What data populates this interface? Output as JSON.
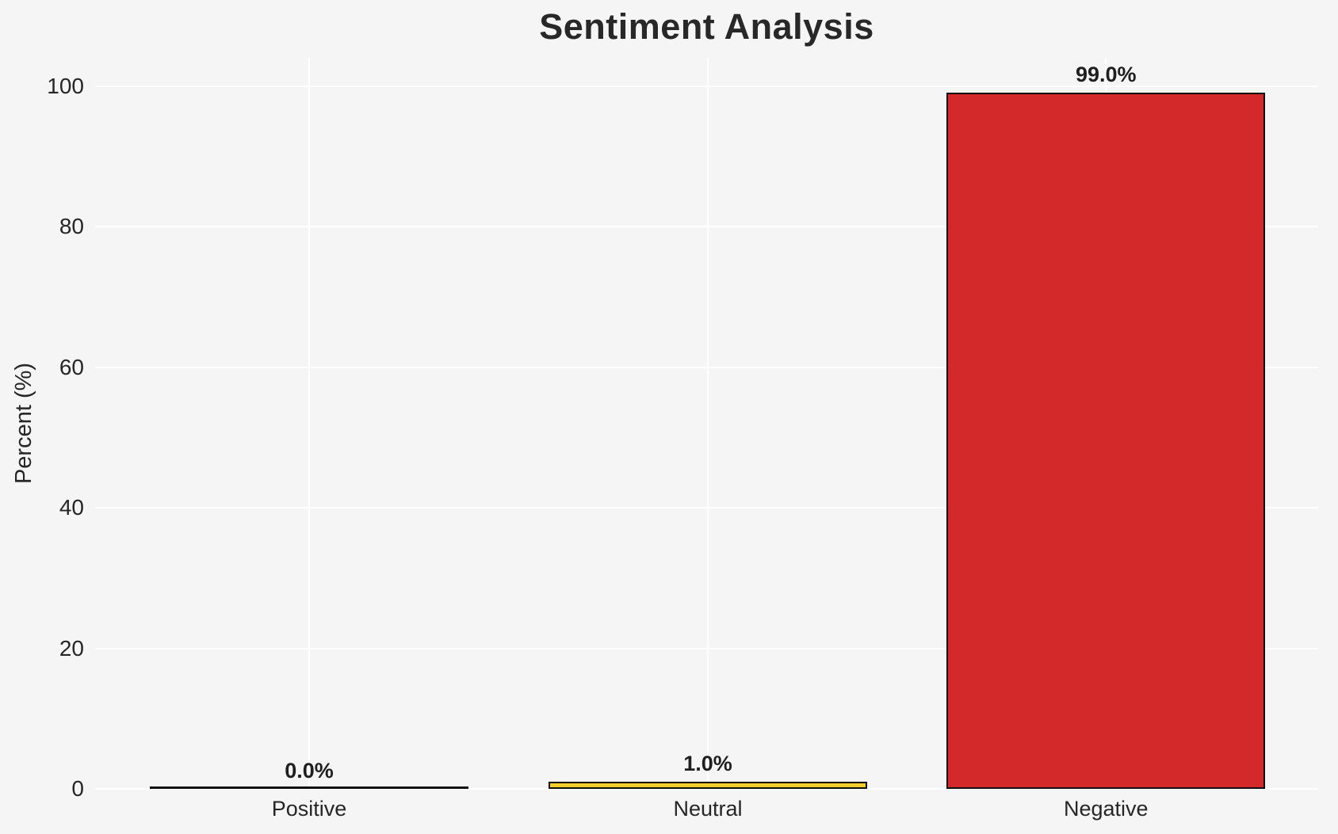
{
  "chart_data": {
    "type": "bar",
    "title": "Sentiment Analysis",
    "categories": [
      "Positive",
      "Neutral",
      "Negative"
    ],
    "values": [
      0.0,
      1.0,
      99.0
    ],
    "value_labels": [
      "0.0%",
      "1.0%",
      "99.0%"
    ],
    "ylabel": "Percent (%)",
    "yticks": [
      0,
      20,
      40,
      60,
      80,
      100
    ],
    "ylim": [
      0,
      104
    ],
    "grid": true,
    "legend": false,
    "bar_colors": [
      "transparent",
      "#f2ce2b",
      "#d4292a"
    ],
    "bar_edge_color": "#0f0f0f",
    "background_color": "#f5f5f5",
    "gridline_color": "#ffffff",
    "text_color": "#262626"
  }
}
